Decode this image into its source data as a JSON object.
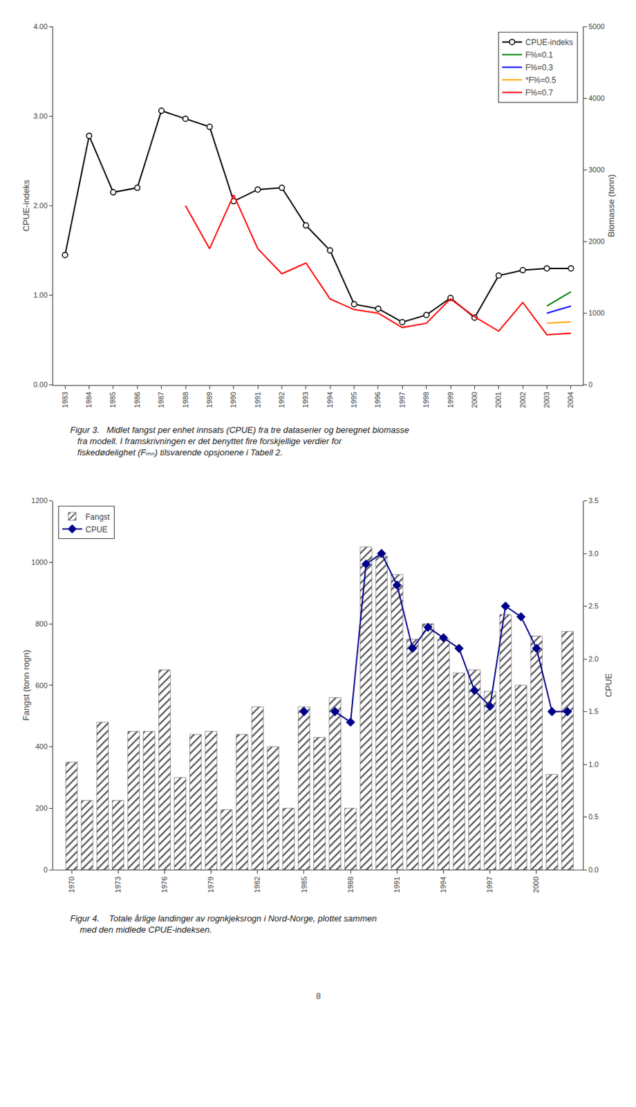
{
  "chart_data": [
    {
      "type": "line",
      "ylabel": "CPUE-indeks",
      "y2label": "Biomasse (tonn)",
      "xlim": [
        1982.5,
        2004.5
      ],
      "xticks": [
        1983,
        1984,
        1985,
        1986,
        1987,
        1988,
        1989,
        1990,
        1991,
        1992,
        1993,
        1994,
        1995,
        1996,
        1997,
        1998,
        1999,
        2000,
        2001,
        2002,
        2003,
        2004
      ],
      "ylim": [
        0.0,
        4.0
      ],
      "yticks": [
        {
          "value": 0.0,
          "label": "0.00"
        },
        {
          "value": 1.0,
          "label": "1.00"
        },
        {
          "value": 2.0,
          "label": "2.00"
        },
        {
          "value": 3.0,
          "label": "3.00"
        },
        {
          "value": 4.0,
          "label": "4.00"
        }
      ],
      "y2lim": [
        0,
        5000
      ],
      "y2ticks": [
        0,
        1000,
        2000,
        3000,
        4000,
        5000
      ],
      "grid": false,
      "legend": "upper right",
      "series": [
        {
          "name": "CPUE-indeks",
          "color": "black",
          "marker": "o",
          "x": [
            1983,
            1984,
            1985,
            1986,
            1987,
            1988,
            1989,
            1990,
            1991,
            1992,
            1993,
            1994,
            1995,
            1996,
            1997,
            1998,
            1999,
            2000,
            2001,
            2002,
            2003,
            2004
          ],
          "values": [
            1.45,
            2.78,
            2.15,
            2.2,
            3.06,
            2.97,
            2.88,
            2.05,
            2.18,
            2.2,
            1.78,
            1.5,
            0.9,
            0.85,
            0.7,
            0.78,
            0.97,
            0.75,
            1.22,
            1.28,
            1.3,
            1.3
          ]
        },
        {
          "name": "F%=0.1",
          "color": "green",
          "axis": "y2",
          "x": [
            1988,
            1989,
            1990,
            1991,
            1992,
            1993,
            1994,
            1995,
            1996,
            1997,
            1998,
            1999,
            2000,
            2001,
            2002,
            2003,
            2004
          ],
          "values": [
            null,
            null,
            null,
            null,
            null,
            null,
            null,
            null,
            null,
            null,
            null,
            null,
            null,
            null,
            null,
            1100,
            1300
          ]
        },
        {
          "name": "F%=0.3",
          "color": "blue",
          "axis": "y2",
          "x": [
            1988,
            1989,
            1990,
            1991,
            1992,
            1993,
            1994,
            1995,
            1996,
            1997,
            1998,
            1999,
            2000,
            2001,
            2002,
            2003,
            2004
          ],
          "values": [
            null,
            null,
            null,
            null,
            null,
            null,
            null,
            null,
            null,
            null,
            null,
            null,
            null,
            null,
            null,
            1000,
            1100
          ]
        },
        {
          "name": "*F%=0.5",
          "color": "orange",
          "axis": "y2",
          "x": [
            1988,
            1989,
            1990,
            1991,
            1992,
            1993,
            1994,
            1995,
            1996,
            1997,
            1998,
            1999,
            2000,
            2001,
            2002,
            2003,
            2004
          ],
          "values": [
            null,
            null,
            null,
            null,
            null,
            null,
            null,
            null,
            null,
            null,
            null,
            null,
            null,
            null,
            null,
            860,
            880
          ]
        },
        {
          "name": "F%=0.7",
          "color": "red",
          "axis": "y2",
          "x": [
            1988,
            1989,
            1990,
            1991,
            1992,
            1993,
            1994,
            1995,
            1996,
            1997,
            1998,
            1999,
            2000,
            2001,
            2002,
            2003,
            2004
          ],
          "values": [
            2500,
            1900,
            2650,
            1900,
            1550,
            1700,
            1200,
            1050,
            1000,
            800,
            860,
            1200,
            950,
            750,
            1150,
            700,
            720
          ]
        }
      ],
      "annotations": [
        "Figur 3.   Midlet fangst per enhet innsats (CPUE) fra tre dataserier og beregnet biomasse\n   fra modell. I framskrivningen er det benyttet fire forskjellige verdier for\n   fiskedødelighet (Fₘₙ) tilsvarende opsjonene i Tabell 2."
      ]
    },
    {
      "type": "bar",
      "ylabel": "Fangst (tonn rogn)",
      "y2label": "CPUE",
      "x": [
        1970,
        1971,
        1972,
        1973,
        1974,
        1975,
        1976,
        1977,
        1978,
        1979,
        1980,
        1981,
        1982,
        1983,
        1984,
        1985,
        1986,
        1987,
        1988,
        1989,
        1990,
        1991,
        1992,
        1993,
        1994,
        1995,
        1996,
        1997,
        1998,
        1999,
        2000,
        2001,
        2002
      ],
      "xlim": [
        1968.8,
        2003.0
      ],
      "xticks": [
        1970,
        1973,
        1976,
        1979,
        1982,
        1985,
        1988,
        1991,
        1994,
        1997,
        2000
      ],
      "ylim": [
        0,
        1200
      ],
      "yticks": [
        0,
        200,
        400,
        600,
        800,
        1000,
        1200
      ],
      "y2lim": [
        0,
        3.5
      ],
      "y2ticks": [
        {
          "value": 0,
          "label": "0.0"
        },
        0.5,
        {
          "value": 1.0,
          "label": "1.0"
        },
        1.5,
        {
          "value": 2.0,
          "label": "2.0"
        },
        2.5,
        {
          "value": 3.0,
          "label": "3.0"
        },
        3.5
      ],
      "grid": false,
      "legend": "upper left",
      "series": [
        {
          "name": "Fangst",
          "type": "bar",
          "color": "#c8c8c8",
          "values": [
            350,
            225,
            480,
            225,
            450,
            450,
            650,
            300,
            440,
            450,
            195,
            440,
            530,
            400,
            200,
            530,
            430,
            560,
            200,
            1050,
            1020,
            960,
            750,
            800,
            750,
            640,
            650,
            580,
            830,
            600,
            760,
            310,
            775
          ]
        },
        {
          "name": "CPUE",
          "type": "line",
          "color": "darkblue",
          "marker": "D",
          "axis": "y2",
          "values": [
            null,
            null,
            null,
            null,
            null,
            null,
            null,
            null,
            null,
            null,
            null,
            null,
            null,
            null,
            null,
            1.5,
            null,
            1.5,
            1.4,
            2.9,
            3.0,
            2.7,
            2.1,
            2.3,
            2.2,
            2.1,
            1.7,
            1.55,
            2.5,
            2.4,
            2.1,
            1.5,
            1.5
          ]
        }
      ],
      "annotations": [
        "Figur 4.    Totale årlige landinger av rognkjeksrogn i Nord-Norge, plottet sammen\n    med den midlede CPUE-indeksen."
      ]
    }
  ],
  "page_number": "8"
}
